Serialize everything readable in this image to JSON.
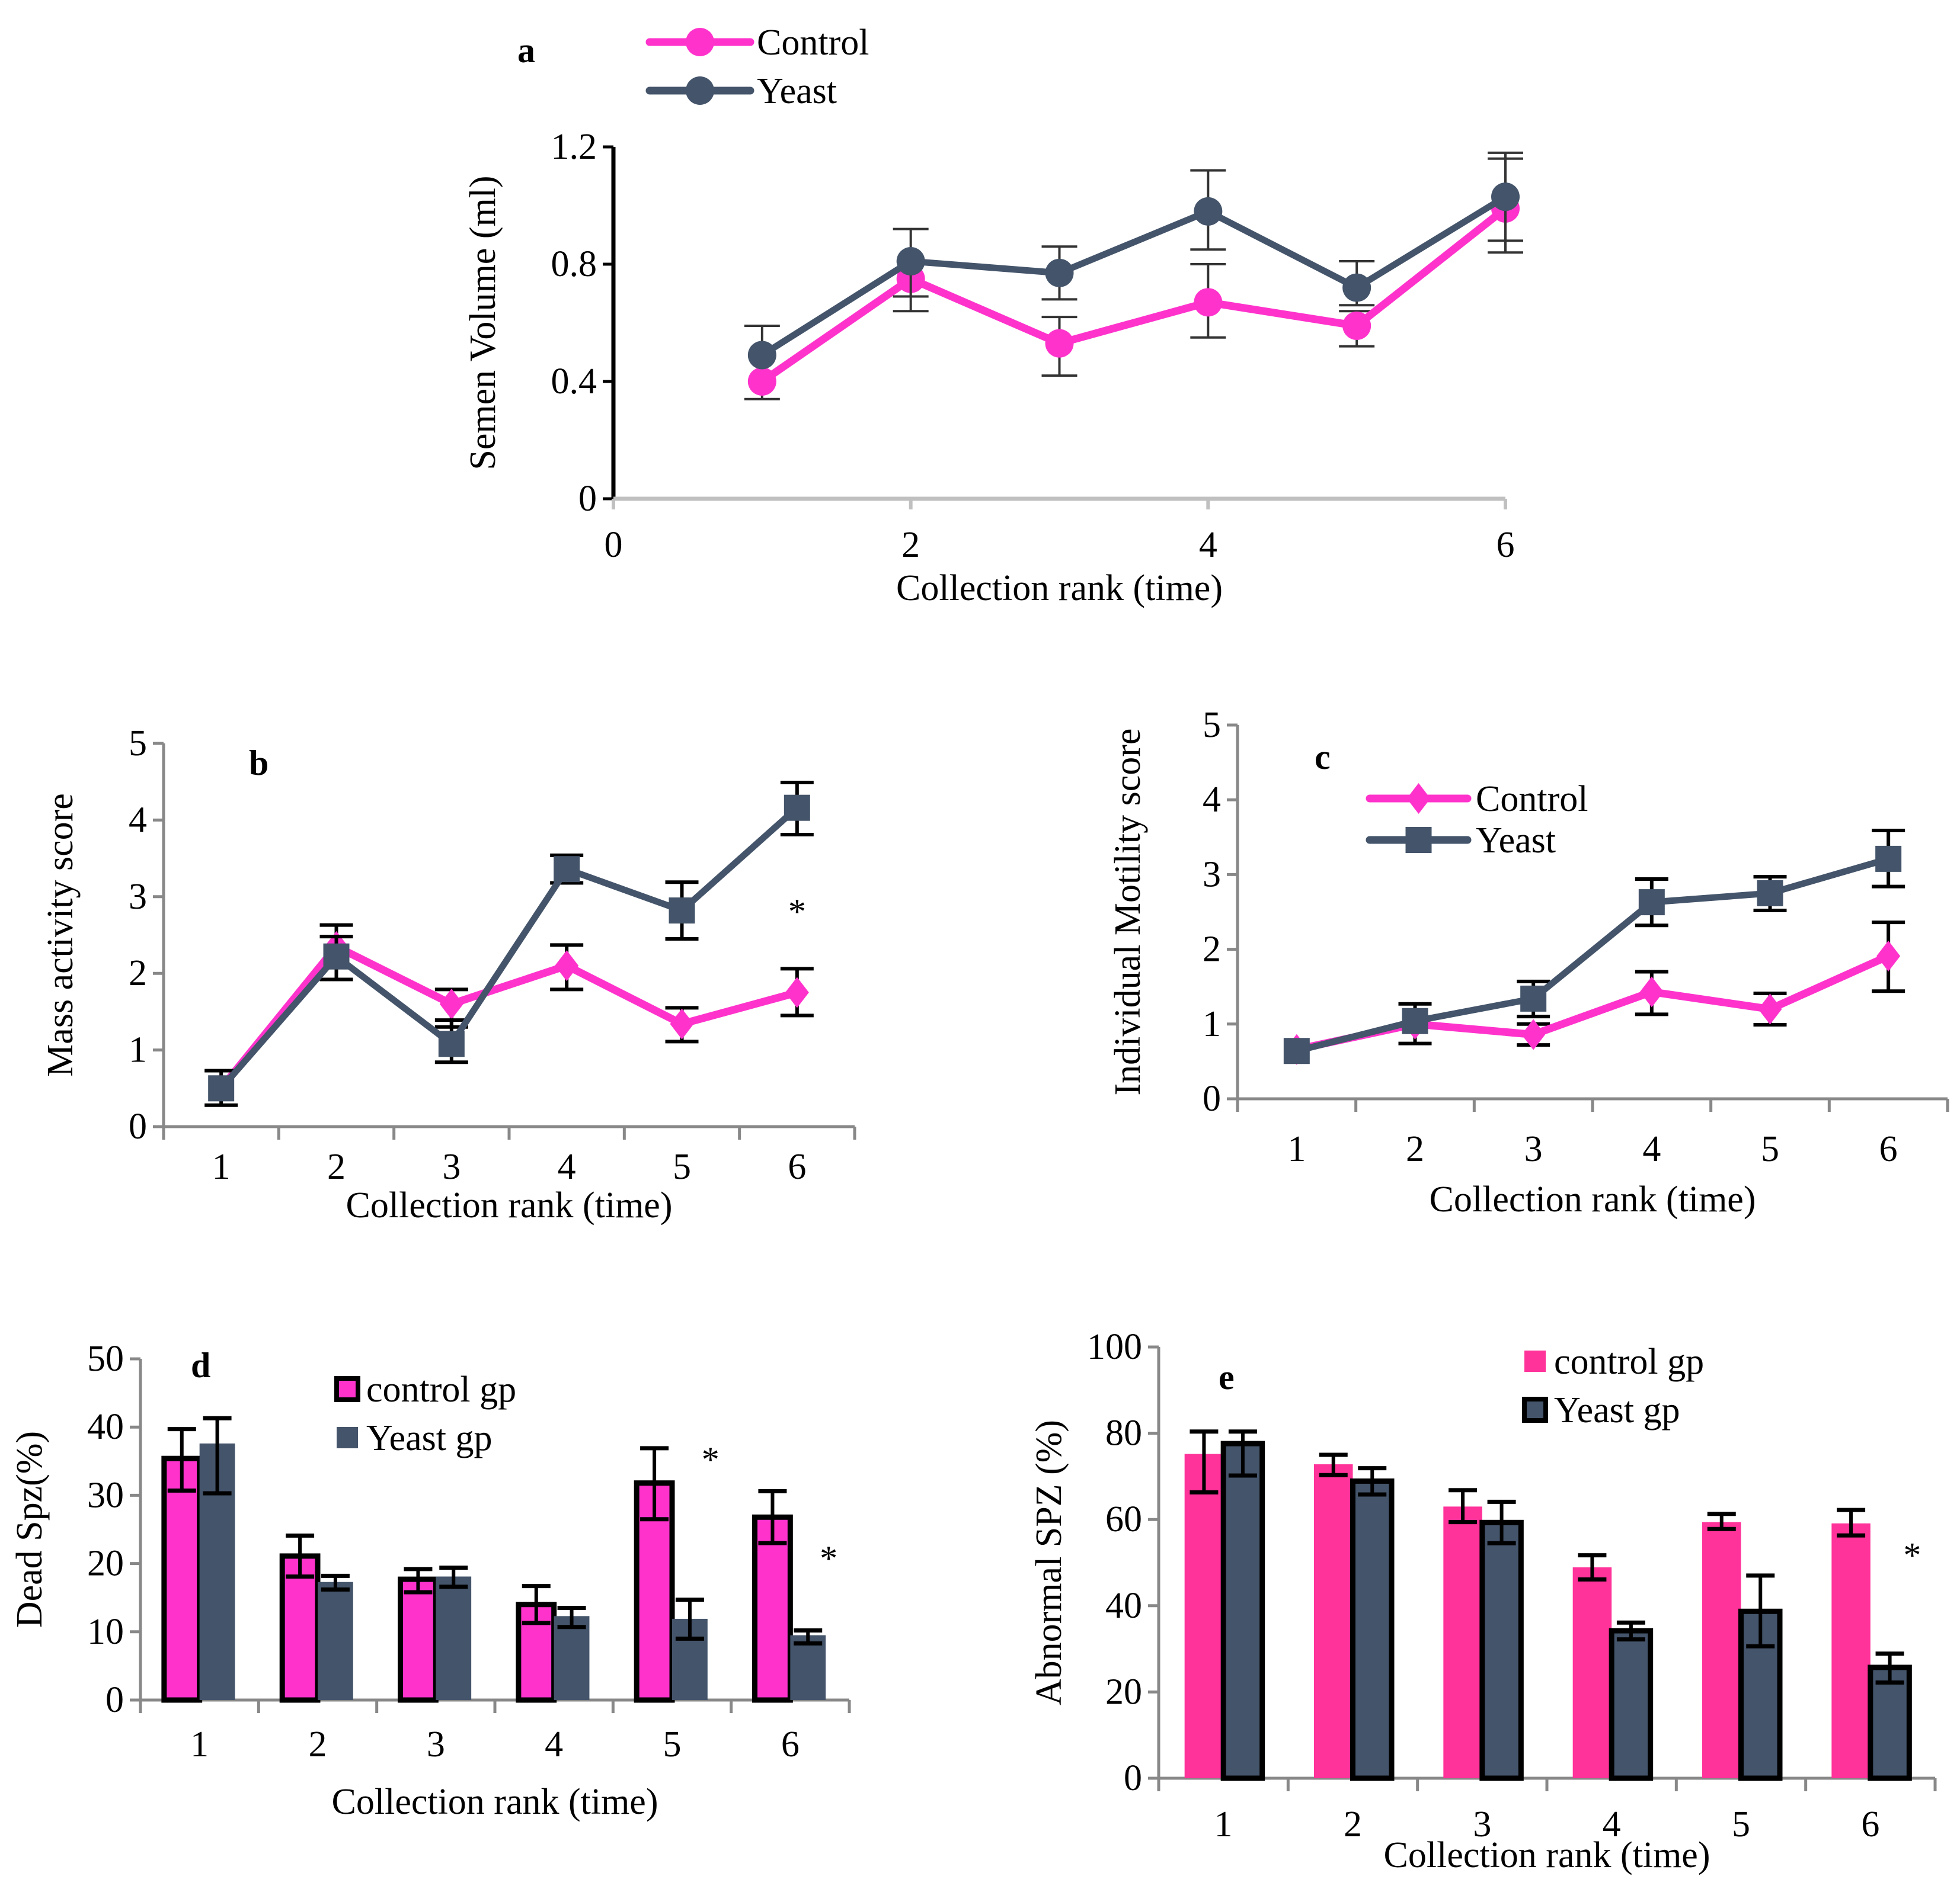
{
  "figure": {
    "panels": [
      "a",
      "b",
      "c",
      "d",
      "e"
    ]
  },
  "colors": {
    "control_line": "#FF33CC",
    "yeast_line": "#44546A",
    "control_bar_d": "#FF33CC",
    "control_bar_e": "#FF3399",
    "yeast_bar": "#44546A",
    "axis_a": "#000000",
    "axis_gray": "#888888",
    "errbar": "#000000"
  },
  "chart_data": [
    {
      "panel": "a",
      "type": "line",
      "title": "",
      "panel_label": "a",
      "xlabel": "Collection rank (time)",
      "ylabel": "Semen Volume (ml)",
      "xlim": [
        0,
        6
      ],
      "ylim": [
        0,
        1.2
      ],
      "xticks": [
        0,
        2,
        4,
        6
      ],
      "xtick_labels": [
        "0",
        "2",
        "4",
        "6"
      ],
      "yticks": [
        0,
        0.4,
        0.8,
        1.2
      ],
      "ytick_labels": [
        "0",
        "0.4",
        "0.8",
        "1.2"
      ],
      "marker": "circle",
      "legend": {
        "position": "top",
        "entries": [
          "Control",
          "Yeast"
        ]
      },
      "x": [
        1,
        2,
        3,
        4,
        5,
        6
      ],
      "series": [
        {
          "name": "Control",
          "values": [
            0.4,
            0.75,
            0.53,
            0.67,
            0.59,
            0.99
          ],
          "err_low": [
            0.34,
            0.64,
            0.42,
            0.55,
            0.52,
            0.88
          ],
          "err_high": [
            0.4,
            0.75,
            0.62,
            0.8,
            0.64,
            1.16
          ]
        },
        {
          "name": "Yeast",
          "values": [
            0.49,
            0.81,
            0.77,
            0.98,
            0.72,
            1.03
          ],
          "err_low": [
            0.49,
            0.69,
            0.68,
            0.85,
            0.66,
            0.84
          ],
          "err_high": [
            0.59,
            0.92,
            0.86,
            1.12,
            0.81,
            1.18
          ]
        }
      ],
      "annotations": []
    },
    {
      "panel": "b",
      "type": "line",
      "title": "",
      "panel_label": "b",
      "xlabel": "Collection rank (time)",
      "ylabel": "Mass activity score",
      "categories": [
        "1",
        "2",
        "3",
        "4",
        "5",
        "6"
      ],
      "ylim": [
        0,
        5
      ],
      "yticks": [
        0,
        1,
        2,
        3,
        4,
        5
      ],
      "ytick_labels": [
        "0",
        "1",
        "2",
        "3",
        "4",
        "5"
      ],
      "legend": null,
      "series": [
        {
          "name": "Control",
          "marker": "diamond",
          "values": [
            0.5,
            2.35,
            1.6,
            2.1,
            1.34,
            1.75
          ],
          "err_low": [
            0.5,
            2.35,
            1.3,
            1.79,
            1.11,
            1.45
          ],
          "err_high": [
            0.5,
            2.63,
            1.79,
            2.37,
            1.55,
            2.06
          ]
        },
        {
          "name": "Yeast",
          "marker": "square",
          "values": [
            0.5,
            2.22,
            1.08,
            3.36,
            2.82,
            4.16
          ],
          "err_low": [
            0.28,
            1.92,
            0.84,
            3.18,
            2.45,
            3.81
          ],
          "err_high": [
            0.73,
            2.48,
            1.39,
            3.54,
            3.19,
            4.49
          ]
        }
      ],
      "annotations": [
        {
          "text": "*",
          "category": "6",
          "y": 2.65
        }
      ]
    },
    {
      "panel": "c",
      "type": "line",
      "title": "",
      "panel_label": "c",
      "xlabel": "Collection rank (time)",
      "ylabel": "Individual Motility score",
      "categories": [
        "1",
        "2",
        "3",
        "4",
        "5",
        "6"
      ],
      "ylim": [
        0,
        5
      ],
      "yticks": [
        0,
        1,
        2,
        3,
        4,
        5
      ],
      "ytick_labels": [
        "0",
        "1",
        "2",
        "3",
        "4",
        "5"
      ],
      "legend": {
        "position": "top-left",
        "entries": [
          "Control",
          "Yeast"
        ]
      },
      "series": [
        {
          "name": "Control",
          "marker": "diamond",
          "values": [
            0.66,
            1.0,
            0.86,
            1.43,
            1.2,
            1.91
          ],
          "err_low": [
            0.66,
            0.74,
            0.72,
            1.13,
            0.99,
            1.44
          ],
          "err_high": [
            0.66,
            1.0,
            1.0,
            1.7,
            1.41,
            2.36
          ]
        },
        {
          "name": "Yeast",
          "marker": "square",
          "values": [
            0.64,
            1.04,
            1.34,
            2.63,
            2.75,
            3.21
          ],
          "err_low": [
            0.64,
            1.04,
            1.1,
            2.32,
            2.52,
            2.84
          ],
          "err_high": [
            0.64,
            1.27,
            1.57,
            2.94,
            2.97,
            3.59
          ]
        }
      ],
      "annotations": []
    },
    {
      "panel": "d",
      "type": "bar",
      "title": "",
      "panel_label": "d",
      "xlabel": "Collection rank (time)",
      "ylabel": "Dead Spz(%)",
      "categories": [
        "1",
        "2",
        "3",
        "4",
        "5",
        "6"
      ],
      "ylim": [
        0,
        50
      ],
      "yticks": [
        0,
        10,
        20,
        30,
        40,
        50
      ],
      "ytick_labels": [
        "0",
        "10",
        "20",
        "30",
        "40",
        "50"
      ],
      "legend": {
        "position": "top-center",
        "entries": [
          "control gp",
          "Yeast gp"
        ]
      },
      "outlined_series": "control gp",
      "series": [
        {
          "name": "control gp",
          "values": [
            35.4,
            21.1,
            17.7,
            14.0,
            31.8,
            26.8
          ],
          "err_low": [
            30.7,
            18.1,
            15.8,
            11.3,
            26.5,
            23.0
          ],
          "err_high": [
            39.7,
            24.1,
            19.2,
            16.7,
            36.9,
            30.6
          ]
        },
        {
          "name": "Yeast gp",
          "values": [
            37.6,
            17.3,
            18.1,
            12.3,
            11.9,
            9.5
          ],
          "err_low": [
            30.3,
            16.2,
            16.6,
            10.7,
            9.0,
            8.3
          ],
          "err_high": [
            41.3,
            18.2,
            19.4,
            13.5,
            14.7,
            10.2
          ]
        }
      ],
      "annotations": [
        {
          "text": "*",
          "category": "5",
          "y": 33.5
        },
        {
          "text": "*",
          "category": "6",
          "y": 19.0
        }
      ]
    },
    {
      "panel": "e",
      "type": "bar",
      "title": "",
      "panel_label": "e",
      "xlabel": "Collection rank (time)",
      "ylabel": "Abnormal  SPZ (%)",
      "categories": [
        "1",
        "2",
        "3",
        "4",
        "5",
        "6"
      ],
      "ylim": [
        0,
        100
      ],
      "yticks": [
        0,
        20,
        40,
        60,
        80,
        100
      ],
      "ytick_labels": [
        "0",
        "20",
        "40",
        "60",
        "80",
        "100"
      ],
      "legend": {
        "position": "top-right",
        "entries": [
          "control gp",
          "Yeast gp"
        ]
      },
      "outlined_series": "Yeast gp",
      "series": [
        {
          "name": "control gp",
          "values": [
            75.2,
            72.8,
            63.0,
            48.9,
            59.4,
            59.1
          ],
          "err_low": [
            66.3,
            70.3,
            59.4,
            46.1,
            57.8,
            56.3
          ],
          "err_high": [
            80.4,
            75.0,
            66.8,
            51.7,
            61.3,
            62.2
          ]
        },
        {
          "name": "Yeast gp",
          "values": [
            77.6,
            68.9,
            59.3,
            34.2,
            38.7,
            25.7
          ],
          "err_low": [
            70.2,
            65.8,
            54.5,
            32.2,
            30.6,
            22.2
          ],
          "err_high": [
            80.4,
            71.9,
            64.1,
            36.1,
            47.0,
            28.9
          ]
        }
      ],
      "annotations": [
        {
          "text": "*",
          "category": "6",
          "y": 49.0
        }
      ]
    }
  ]
}
